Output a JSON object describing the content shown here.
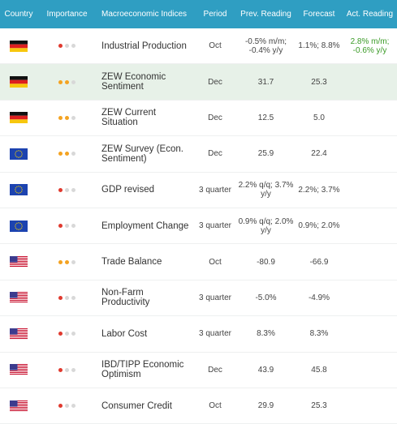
{
  "colors": {
    "header_bg": "#2f9ec2",
    "importance_high": "#e03a2f",
    "importance_medium": "#f4a321",
    "importance_off": "#d8d8d8",
    "actual_text": "#3a9a26",
    "highlight_row": "#e7f1e8"
  },
  "header": {
    "country": "Country",
    "importance": "Importance",
    "indicator": "Macroeconomic Indices",
    "period": "Period",
    "prev": "Prev. Reading",
    "forecast": "Forecast",
    "actual": "Act. Reading"
  },
  "rows": [
    {
      "country": "germany",
      "importance": 1,
      "indicator": "Industrial Production",
      "period": "Oct",
      "prev": "-0.5% m/m; -0.4% y/y",
      "forecast": "1.1%; 8.8%",
      "actual": "2.8% m/m; -0.6% y/y"
    },
    {
      "country": "germany",
      "importance": 2,
      "indicator": "ZEW Economic Sentiment",
      "period": "Dec",
      "prev": "31.7",
      "forecast": "25.3",
      "actual": ""
    },
    {
      "country": "germany",
      "importance": 2,
      "indicator": "ZEW Current Situation",
      "period": "Dec",
      "prev": "12.5",
      "forecast": "5.0",
      "actual": ""
    },
    {
      "country": "eu",
      "importance": 2,
      "indicator": "ZEW Survey (Econ. Sentiment)",
      "period": "Dec",
      "prev": "25.9",
      "forecast": "22.4",
      "actual": ""
    },
    {
      "country": "eu",
      "importance": 1,
      "indicator": "GDP revised",
      "period": "3 quarter",
      "prev": "2.2% q/q; 3.7% y/y",
      "forecast": "2.2%; 3.7%",
      "actual": ""
    },
    {
      "country": "eu",
      "importance": 1,
      "indicator": "Employment Change",
      "period": "3 quarter",
      "prev": "0.9% q/q; 2.0% y/y",
      "forecast": "0.9%; 2.0%",
      "actual": ""
    },
    {
      "country": "usa",
      "importance": 2,
      "indicator": "Trade Balance",
      "period": "Oct",
      "prev": "-80.9",
      "forecast": "-66.9",
      "actual": ""
    },
    {
      "country": "usa",
      "importance": 1,
      "indicator": "Non-Farm Productivity",
      "period": "3 quarter",
      "prev": "-5.0%",
      "forecast": "-4.9%",
      "actual": ""
    },
    {
      "country": "usa",
      "importance": 1,
      "indicator": "Labor Cost",
      "period": "3 quarter",
      "prev": "8.3%",
      "forecast": "8.3%",
      "actual": ""
    },
    {
      "country": "usa",
      "importance": 1,
      "indicator": "IBD/TIPP Economic Optimism",
      "period": "Dec",
      "prev": "43.9",
      "forecast": "45.8",
      "actual": ""
    },
    {
      "country": "usa",
      "importance": 1,
      "indicator": "Consumer Credit",
      "period": "Oct",
      "prev": "29.9",
      "forecast": "25.3",
      "actual": ""
    }
  ]
}
